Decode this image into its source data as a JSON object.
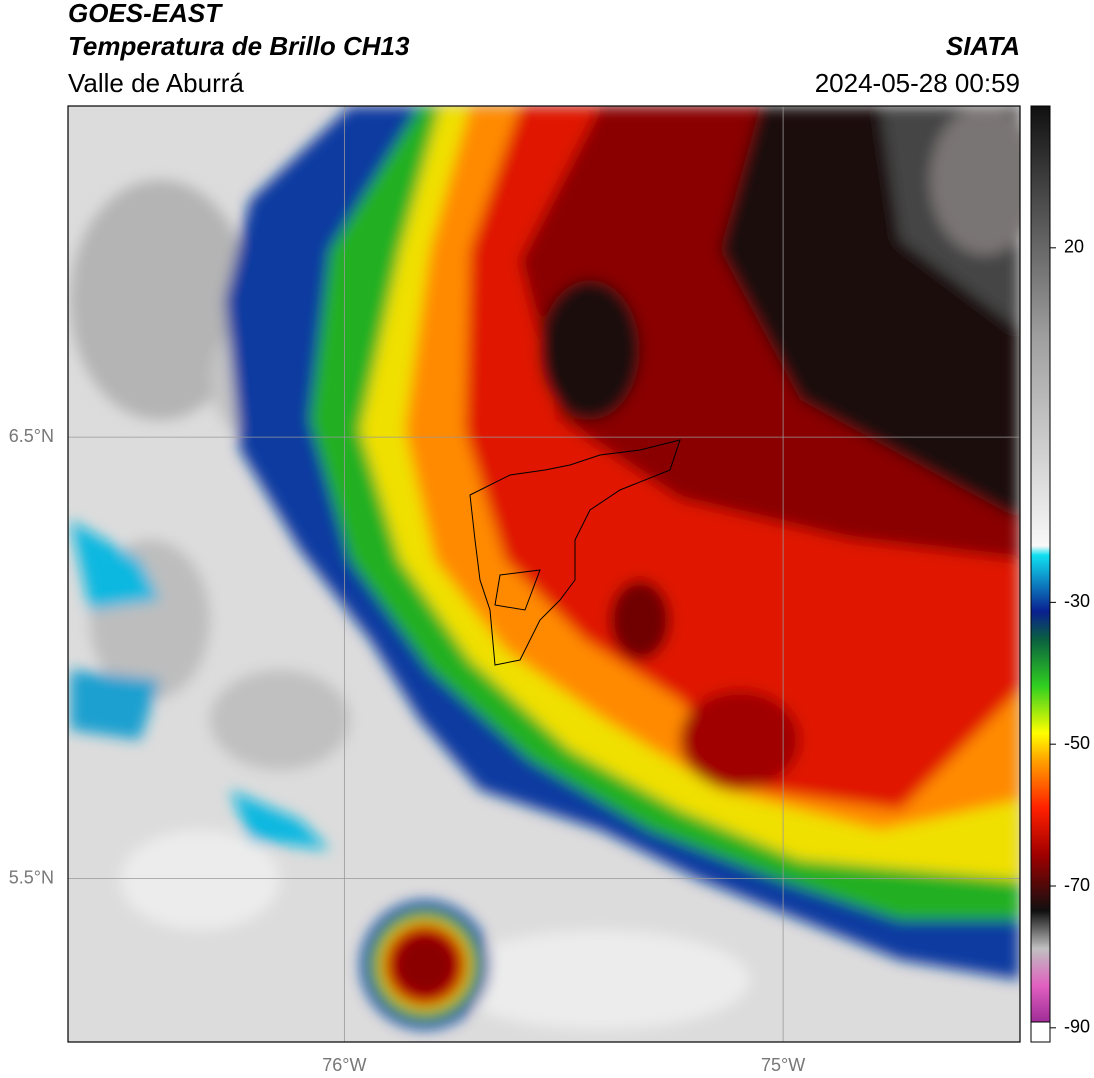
{
  "header": {
    "title": "GOES-EAST",
    "subtitle": "Temperatura de Brillo CH13",
    "source": "SIATA",
    "region": "Valle de Aburrá",
    "datetime": "2024-05-28 00:59"
  },
  "map": {
    "xlim": [
      -76.63,
      -74.46
    ],
    "ylim": [
      5.13,
      7.25
    ],
    "xticks": [
      {
        "value": -76,
        "label": "76°W"
      },
      {
        "value": -75,
        "label": "75°W"
      }
    ],
    "yticks": [
      {
        "value": 5.5,
        "label": "5.5°N"
      },
      {
        "value": 6.5,
        "label": "6.5°N"
      }
    ]
  },
  "colorbar": {
    "lim": [
      -92,
      40
    ],
    "ticks": [
      20,
      -30,
      -50,
      -70,
      -90
    ]
  }
}
